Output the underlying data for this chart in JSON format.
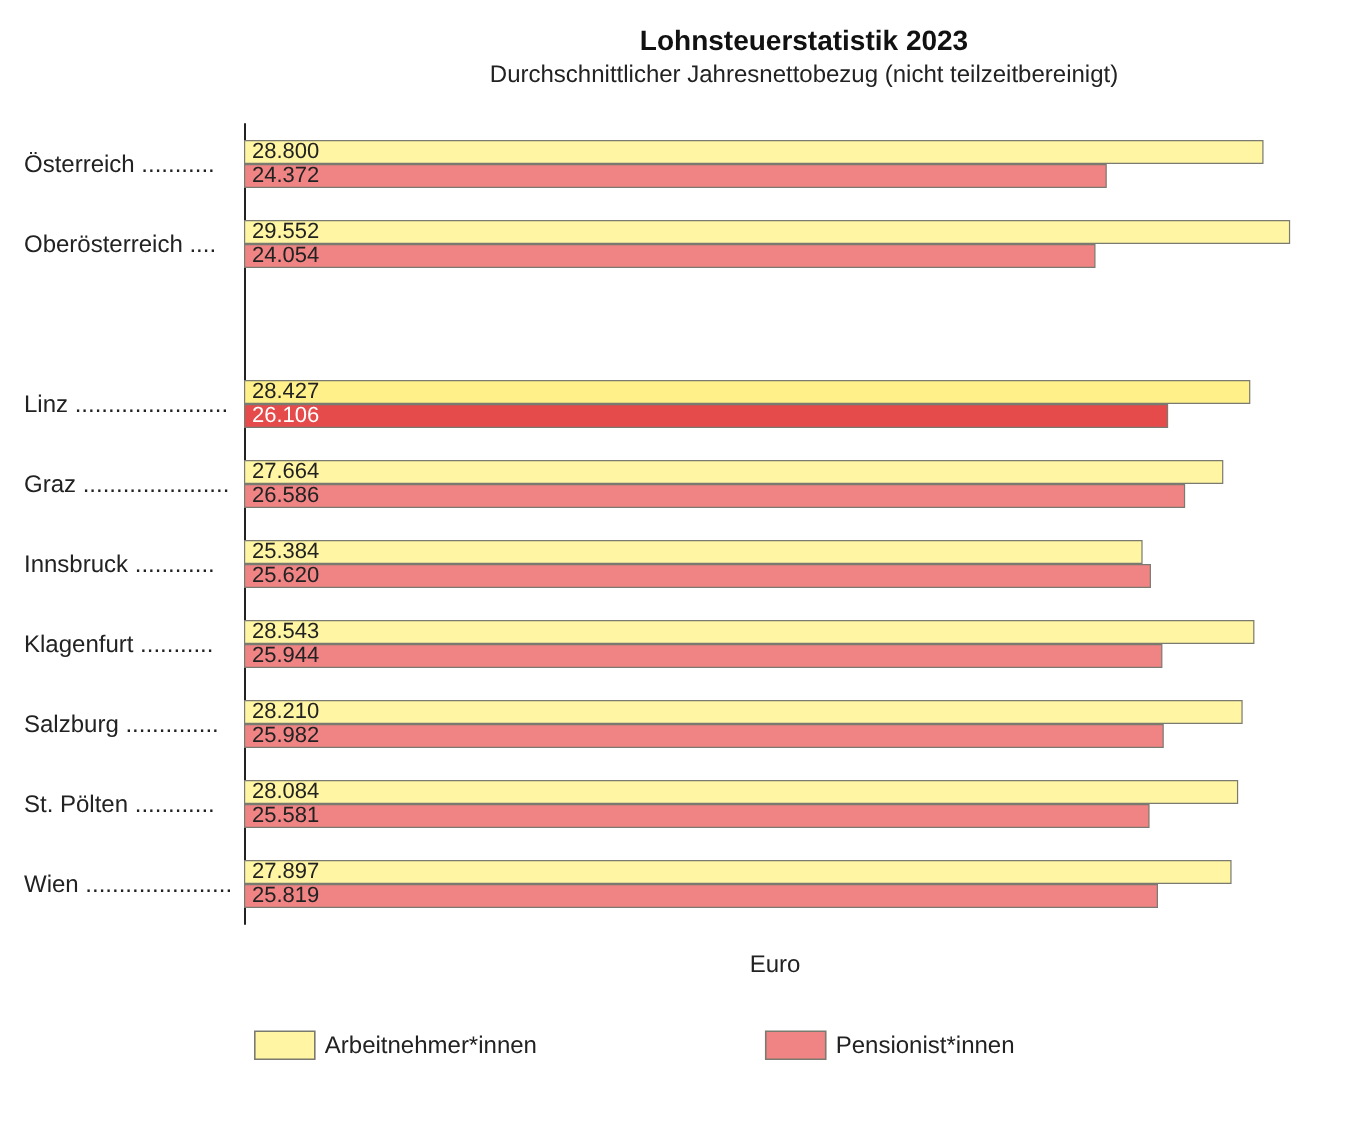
{
  "chart_data": {
    "type": "bar",
    "orientation": "horizontal",
    "title": "Lohnsteuerstatistik 2023",
    "subtitle": "Durchschnittlicher Jahresnettobezug (nicht teilzeitbereinigt)",
    "xlabel": "Euro",
    "categories": [
      "Österreich ...........",
      "Oberösterreich ....",
      null,
      "Linz .......................",
      "Graz ......................",
      "Innsbruck ............",
      "Klagenfurt ...........",
      "Salzburg ..............",
      "St. Pölten ............",
      "Wien ......................"
    ],
    "tick_labels": "y",
    "grid": false,
    "legend": "bottom",
    "data_labels": true,
    "series": [
      {
        "name": "Arbeitnehmer*innen",
        "color": "#fff5a3",
        "colors": [
          "#fff5a3",
          "#fff5a3",
          null,
          "#fff08a",
          "#fff5a3",
          "#fff5a3",
          "#fff5a3",
          "#fff5a3",
          "#fff5a3",
          "#fff5a3"
        ],
        "values": [
          28800,
          29552,
          null,
          28427,
          27664,
          25384,
          28543,
          28210,
          28084,
          27897
        ],
        "value_labels": [
          "28.800",
          "29.552",
          null,
          "28.427",
          "27.664",
          "25.384",
          "28.543",
          "28.210",
          "28.084",
          "27.897"
        ]
      },
      {
        "name": "Pensionist*innen",
        "color": "#f08484",
        "colors": [
          "#f08484",
          "#f08484",
          null,
          "#e54b4b",
          "#f08484",
          "#f08484",
          "#f08484",
          "#f08484",
          "#f08484",
          "#f08484"
        ],
        "values": [
          24372,
          24054,
          null,
          26106,
          26586,
          25620,
          25944,
          25982,
          25581,
          25819
        ],
        "value_labels": [
          "24.372",
          "24.054",
          null,
          "26.106",
          "26.586",
          "25.620",
          "25.944",
          "25.982",
          "25.581",
          "25.819"
        ]
      }
    ]
  }
}
